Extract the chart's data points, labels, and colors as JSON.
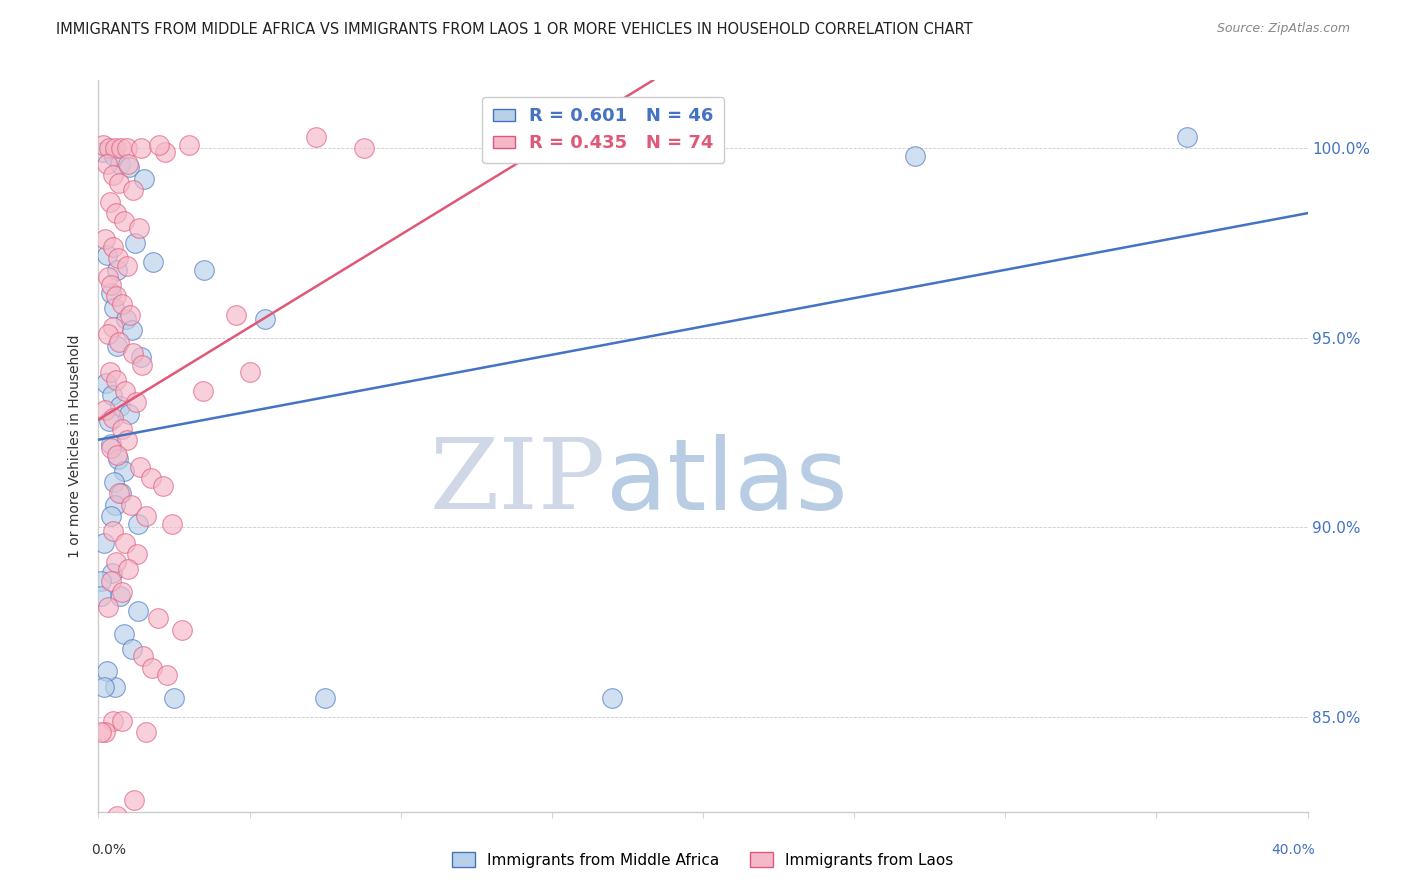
{
  "title": "IMMIGRANTS FROM MIDDLE AFRICA VS IMMIGRANTS FROM LAOS 1 OR MORE VEHICLES IN HOUSEHOLD CORRELATION CHART",
  "source": "Source: ZipAtlas.com",
  "ylabel": "1 or more Vehicles in Household",
  "xmin": 0.0,
  "xmax": 40.0,
  "ymin": 82.5,
  "ymax": 101.8,
  "blue_R": 0.601,
  "blue_N": 46,
  "pink_R": 0.435,
  "pink_N": 74,
  "blue_color": "#b8d0e8",
  "pink_color": "#f5b8c8",
  "blue_line_color": "#4472c4",
  "pink_line_color": "#e05878",
  "legend_blue_label": "Immigrants from Middle Africa",
  "legend_pink_label": "Immigrants from Laos",
  "watermark_ZIP": "ZIP",
  "watermark_atlas": "atlas",
  "watermark_ZIP_color": "#d0d8e8",
  "watermark_atlas_color": "#b8cce4",
  "blue_scatter": [
    [
      0.15,
      99.9
    ],
    [
      0.5,
      99.8
    ],
    [
      0.7,
      99.6
    ],
    [
      1.0,
      99.5
    ],
    [
      1.5,
      99.2
    ],
    [
      0.3,
      97.2
    ],
    [
      0.6,
      96.8
    ],
    [
      1.2,
      97.5
    ],
    [
      1.8,
      97.0
    ],
    [
      0.4,
      96.2
    ],
    [
      0.5,
      95.8
    ],
    [
      0.9,
      95.5
    ],
    [
      0.6,
      94.8
    ],
    [
      1.1,
      95.2
    ],
    [
      1.4,
      94.5
    ],
    [
      0.25,
      93.8
    ],
    [
      0.45,
      93.5
    ],
    [
      0.7,
      93.2
    ],
    [
      1.0,
      93.0
    ],
    [
      0.35,
      92.8
    ],
    [
      0.4,
      92.2
    ],
    [
      0.65,
      91.8
    ],
    [
      0.85,
      91.5
    ],
    [
      0.5,
      91.2
    ],
    [
      0.75,
      90.9
    ],
    [
      0.55,
      90.6
    ],
    [
      0.4,
      90.3
    ],
    [
      1.3,
      90.1
    ],
    [
      0.2,
      89.6
    ],
    [
      0.45,
      88.8
    ],
    [
      0.7,
      88.2
    ],
    [
      1.3,
      87.8
    ],
    [
      0.85,
      87.2
    ],
    [
      1.1,
      86.8
    ],
    [
      0.55,
      85.8
    ],
    [
      2.5,
      85.5
    ],
    [
      0.1,
      88.6
    ],
    [
      0.3,
      86.2
    ],
    [
      3.5,
      96.8
    ],
    [
      5.5,
      95.5
    ],
    [
      7.5,
      85.5
    ],
    [
      17.0,
      85.5
    ],
    [
      27.0,
      99.8
    ],
    [
      36.0,
      100.3
    ],
    [
      0.08,
      88.2
    ],
    [
      0.2,
      85.8
    ]
  ],
  "pink_scatter": [
    [
      0.15,
      100.1
    ],
    [
      0.35,
      100.0
    ],
    [
      0.55,
      100.0
    ],
    [
      0.75,
      100.0
    ],
    [
      0.95,
      100.0
    ],
    [
      1.4,
      100.0
    ],
    [
      2.2,
      99.9
    ],
    [
      0.28,
      99.6
    ],
    [
      0.48,
      99.3
    ],
    [
      0.68,
      99.1
    ],
    [
      1.15,
      98.9
    ],
    [
      0.38,
      98.6
    ],
    [
      0.58,
      98.3
    ],
    [
      0.85,
      98.1
    ],
    [
      1.35,
      97.9
    ],
    [
      0.22,
      97.6
    ],
    [
      0.48,
      97.4
    ],
    [
      0.65,
      97.1
    ],
    [
      0.95,
      96.9
    ],
    [
      0.32,
      96.6
    ],
    [
      0.42,
      96.4
    ],
    [
      0.58,
      96.1
    ],
    [
      0.78,
      95.9
    ],
    [
      1.05,
      95.6
    ],
    [
      0.48,
      95.3
    ],
    [
      0.32,
      95.1
    ],
    [
      0.68,
      94.9
    ],
    [
      1.15,
      94.6
    ],
    [
      1.45,
      94.3
    ],
    [
      0.38,
      94.1
    ],
    [
      0.58,
      93.9
    ],
    [
      0.88,
      93.6
    ],
    [
      1.25,
      93.3
    ],
    [
      0.22,
      93.1
    ],
    [
      0.48,
      92.9
    ],
    [
      0.78,
      92.6
    ],
    [
      0.95,
      92.3
    ],
    [
      0.42,
      92.1
    ],
    [
      0.62,
      91.9
    ],
    [
      1.38,
      91.6
    ],
    [
      1.75,
      91.3
    ],
    [
      2.15,
      91.1
    ],
    [
      0.68,
      90.9
    ],
    [
      1.08,
      90.6
    ],
    [
      1.58,
      90.3
    ],
    [
      2.45,
      90.1
    ],
    [
      0.48,
      89.9
    ],
    [
      0.88,
      89.6
    ],
    [
      1.28,
      89.3
    ],
    [
      0.58,
      89.1
    ],
    [
      0.98,
      88.9
    ],
    [
      0.42,
      88.6
    ],
    [
      0.78,
      88.3
    ],
    [
      0.32,
      87.9
    ],
    [
      1.98,
      87.6
    ],
    [
      2.78,
      87.3
    ],
    [
      0.48,
      84.9
    ],
    [
      0.22,
      84.6
    ],
    [
      3.45,
      93.6
    ],
    [
      5.0,
      94.1
    ],
    [
      7.2,
      100.3
    ],
    [
      8.8,
      100.0
    ],
    [
      1.48,
      86.6
    ],
    [
      1.78,
      86.3
    ],
    [
      2.28,
      86.1
    ],
    [
      1.18,
      82.8
    ],
    [
      0.62,
      82.4
    ],
    [
      4.55,
      95.6
    ],
    [
      0.98,
      99.6
    ],
    [
      2.0,
      100.1
    ],
    [
      3.0,
      100.1
    ],
    [
      0.78,
      84.9
    ],
    [
      1.58,
      84.6
    ],
    [
      0.08,
      84.6
    ]
  ]
}
